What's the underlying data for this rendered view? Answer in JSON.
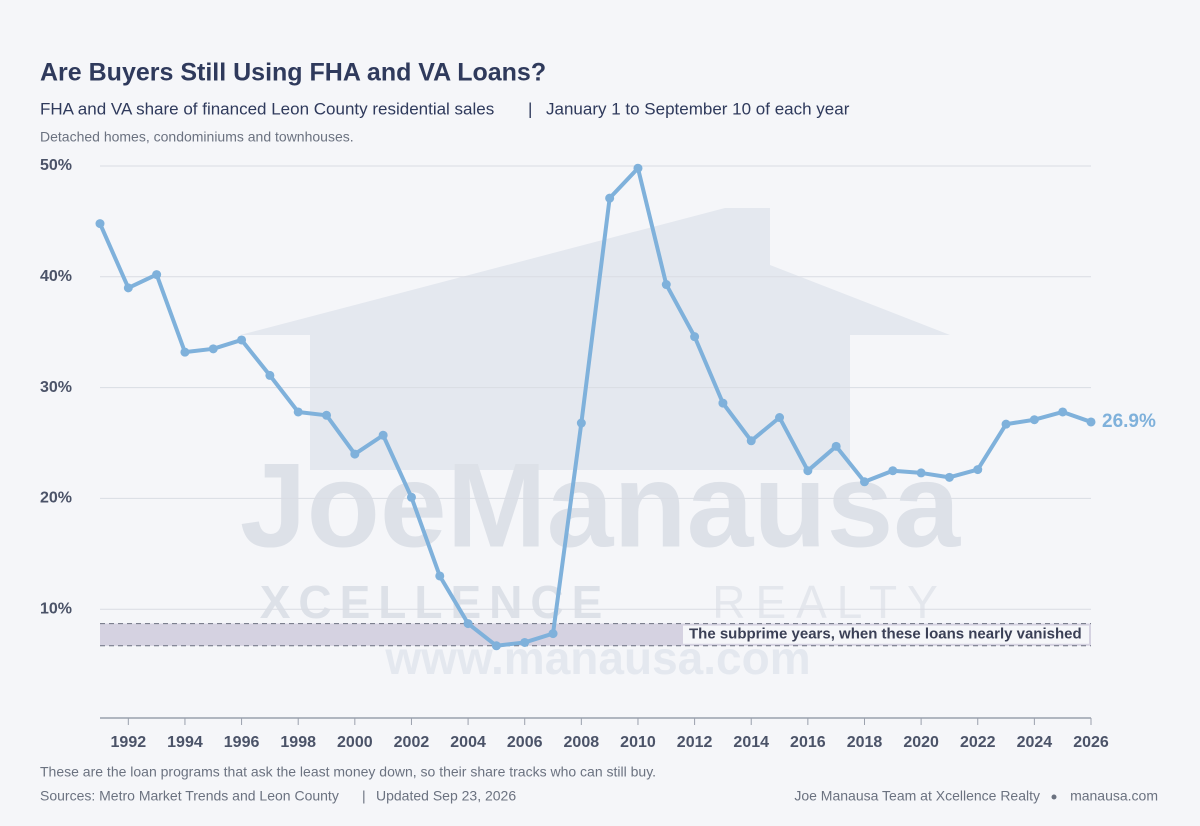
{
  "chart_data": {
    "type": "line",
    "title": "Are Buyers Still Using FHA and VA Loans?",
    "subtitle": [
      "FHA and VA share of financed Leon County residential sales",
      "January 1 to September 10 of each year"
    ],
    "description": "Detached homes, condominiums and townhouses.",
    "note": "These are the loan programs that ask the least money down, so their share tracks who can still buy.",
    "sources": [
      "Sources: Metro Market Trends and Leon County",
      "Updated Sep 23, 2026"
    ],
    "credit": [
      "Joe Manausa Team at Xcellence Realty",
      "manausa.com"
    ],
    "watermark": [
      "JoeManausa",
      "XCELLENCE",
      "REALTY",
      "www.manausa.com"
    ],
    "x": [
      1991,
      1992,
      1993,
      1994,
      1995,
      1996,
      1997,
      1998,
      1999,
      2000,
      2001,
      2002,
      2003,
      2004,
      2005,
      2006,
      2007,
      2008,
      2009,
      2010,
      2011,
      2012,
      2013,
      2014,
      2015,
      2016,
      2017,
      2018,
      2019,
      2020,
      2021,
      2022,
      2023,
      2024,
      2025,
      2026
    ],
    "series": [
      {
        "name": "FHA and VA share",
        "color": "#7fb1db",
        "values": [
          44.8,
          39.0,
          40.2,
          33.2,
          33.5,
          34.3,
          31.1,
          27.8,
          27.5,
          24.0,
          25.7,
          20.1,
          13.0,
          8.7,
          6.7,
          7.0,
          7.8,
          26.8,
          47.1,
          49.8,
          39.3,
          34.6,
          28.6,
          25.2,
          27.3,
          22.5,
          24.7,
          21.5,
          22.5,
          22.3,
          21.9,
          22.6,
          26.7,
          27.1,
          27.8,
          26.9
        ],
        "value_labels": [
          null,
          null,
          null,
          null,
          null,
          null,
          null,
          null,
          null,
          null,
          null,
          null,
          null,
          null,
          null,
          null,
          null,
          null,
          null,
          null,
          null,
          null,
          null,
          null,
          null,
          null,
          null,
          null,
          null,
          null,
          null,
          null,
          null,
          null,
          null,
          "26.9%"
        ]
      }
    ],
    "band": {
      "ymin": 6.7,
      "ymax": 8.7,
      "label": "The subprime years, when these loans nearly vanished"
    },
    "xlim": [
      1991,
      2026
    ],
    "xticks": [
      1992,
      1994,
      1996,
      1998,
      2000,
      2002,
      2004,
      2006,
      2008,
      2010,
      2012,
      2014,
      2016,
      2018,
      2020,
      2022,
      2024,
      2026
    ],
    "ylim": [
      0,
      50
    ],
    "yticks": [
      {
        "value": 10,
        "label": "10%"
      },
      {
        "value": 20,
        "label": "20%"
      },
      {
        "value": 30,
        "label": "30%"
      },
      {
        "value": 40,
        "label": "40%"
      },
      {
        "value": 50,
        "label": "50%"
      }
    ],
    "grid": true
  }
}
